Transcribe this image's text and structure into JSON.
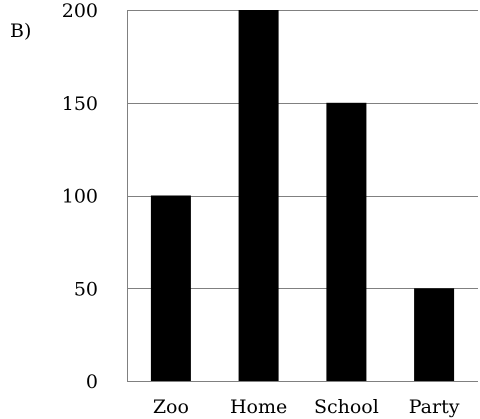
{
  "panel_label": "B)",
  "chart_data": {
    "type": "bar",
    "categories": [
      "Zoo",
      "Home",
      "School",
      "Party"
    ],
    "values": [
      100,
      200,
      150,
      50
    ],
    "ylim": [
      0,
      200
    ],
    "yticks": [
      0,
      50,
      100,
      150,
      200
    ],
    "grid": true,
    "bar_color": "#000000",
    "grid_color": "#808080"
  }
}
